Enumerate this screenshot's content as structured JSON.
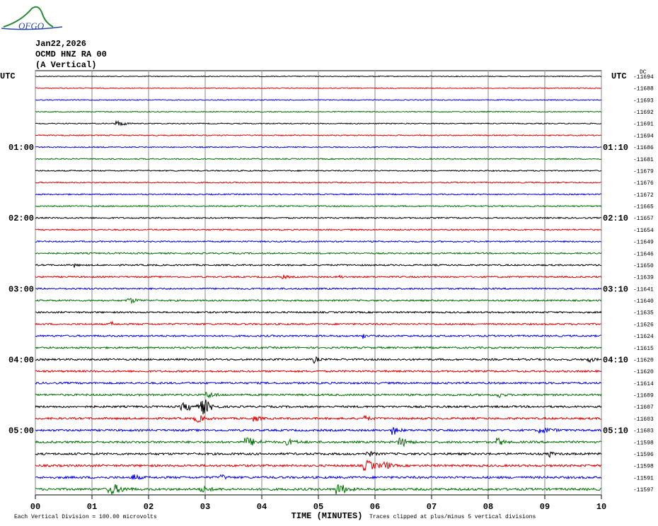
{
  "logo_text": "OFGO",
  "header": {
    "date": "Jan22,2026",
    "station": "OCMD HNZ RA 00",
    "component": "(A Vertical)"
  },
  "left_axis_title": "UTC",
  "right_axis_title": "UTC",
  "dc_label": "DC",
  "left_times": [
    {
      "row": 6,
      "label": "01:00"
    },
    {
      "row": 12,
      "label": "02:00"
    },
    {
      "row": 18,
      "label": "03:00"
    },
    {
      "row": 24,
      "label": "04:00"
    },
    {
      "row": 30,
      "label": "05:00"
    }
  ],
  "right_times": [
    {
      "row": 6,
      "label": "01:10"
    },
    {
      "row": 12,
      "label": "02:10"
    },
    {
      "row": 18,
      "label": "03:10"
    },
    {
      "row": 24,
      "label": "04:10"
    },
    {
      "row": 30,
      "label": "05:10"
    }
  ],
  "trace_offsets": [
    -11694,
    -11688,
    -11693,
    -11692,
    -11691,
    -11694,
    -11686,
    -11681,
    -11679,
    -11676,
    -11672,
    -11665,
    -11657,
    -11654,
    -11649,
    -11646,
    -11650,
    -11639,
    -11641,
    -11640,
    -11635,
    -11626,
    -11624,
    -11615,
    -11620,
    -11620,
    -11614,
    -11609,
    -11607,
    -11603,
    -11603,
    -11598,
    -11596,
    -11598,
    -11591,
    -11597
  ],
  "trace_colors": [
    "#000000",
    "#e00000",
    "#0000e0",
    "#007000"
  ],
  "x_ticks": [
    "00",
    "01",
    "02",
    "03",
    "04",
    "05",
    "06",
    "07",
    "08",
    "09",
    "10"
  ],
  "x_axis_title": "TIME (MINUTES)",
  "footer": {
    "scale_note": "Each Vertical Division =  100.00 microvolts",
    "clip_note": "Traces clipped at plus/minus 5 vertical divisions"
  }
}
